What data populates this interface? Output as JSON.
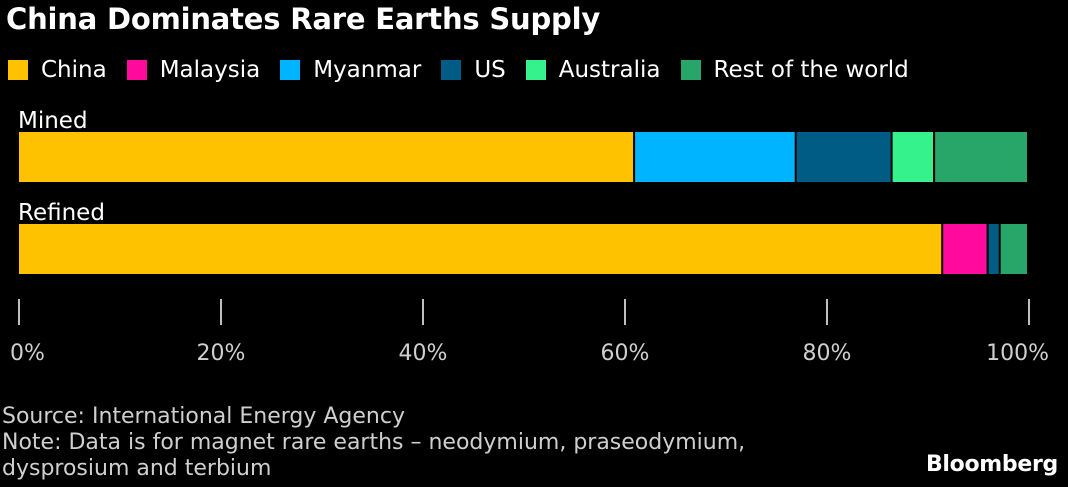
{
  "title": "China Dominates Rare Earths Supply",
  "legend": [
    {
      "label": "China",
      "color": "#ffc200"
    },
    {
      "label": "Malaysia",
      "color": "#ff0a9c"
    },
    {
      "label": "Myanmar",
      "color": "#00b4ff"
    },
    {
      "label": "US",
      "color": "#005b85"
    },
    {
      "label": "Australia",
      "color": "#36f28c"
    },
    {
      "label": "Rest of the world",
      "color": "#28a569"
    }
  ],
  "chart_data": {
    "type": "bar",
    "orientation": "horizontal",
    "stacked": true,
    "categories": [
      "Mined",
      "Refined"
    ],
    "series": [
      {
        "name": "China",
        "color": "#ffc200",
        "values": [
          61,
          91.5
        ]
      },
      {
        "name": "Malaysia",
        "color": "#ff0a9c",
        "values": [
          0,
          4.5
        ]
      },
      {
        "name": "Myanmar",
        "color": "#00b4ff",
        "values": [
          16,
          0
        ]
      },
      {
        "name": "US",
        "color": "#005b85",
        "values": [
          9.5,
          1.2
        ]
      },
      {
        "name": "Australia",
        "color": "#36f28c",
        "values": [
          4.2,
          0
        ]
      },
      {
        "name": "Rest of the world",
        "color": "#28a569",
        "values": [
          9.3,
          2.8
        ]
      }
    ],
    "xlim": [
      0,
      100
    ],
    "xticks": [
      0,
      20,
      40,
      60,
      80,
      100
    ],
    "xtick_labels": [
      "0%",
      "20%",
      "40%",
      "60%",
      "80%",
      "100%"
    ],
    "grid": false,
    "legend_position": "top"
  },
  "footer": {
    "source": "Source: International Energy Agency",
    "note_line1": "Note: Data is for magnet rare earths – neodymium, praseodymium,",
    "note_line2": "dysprosium and terbium",
    "brand": "Bloomberg"
  }
}
